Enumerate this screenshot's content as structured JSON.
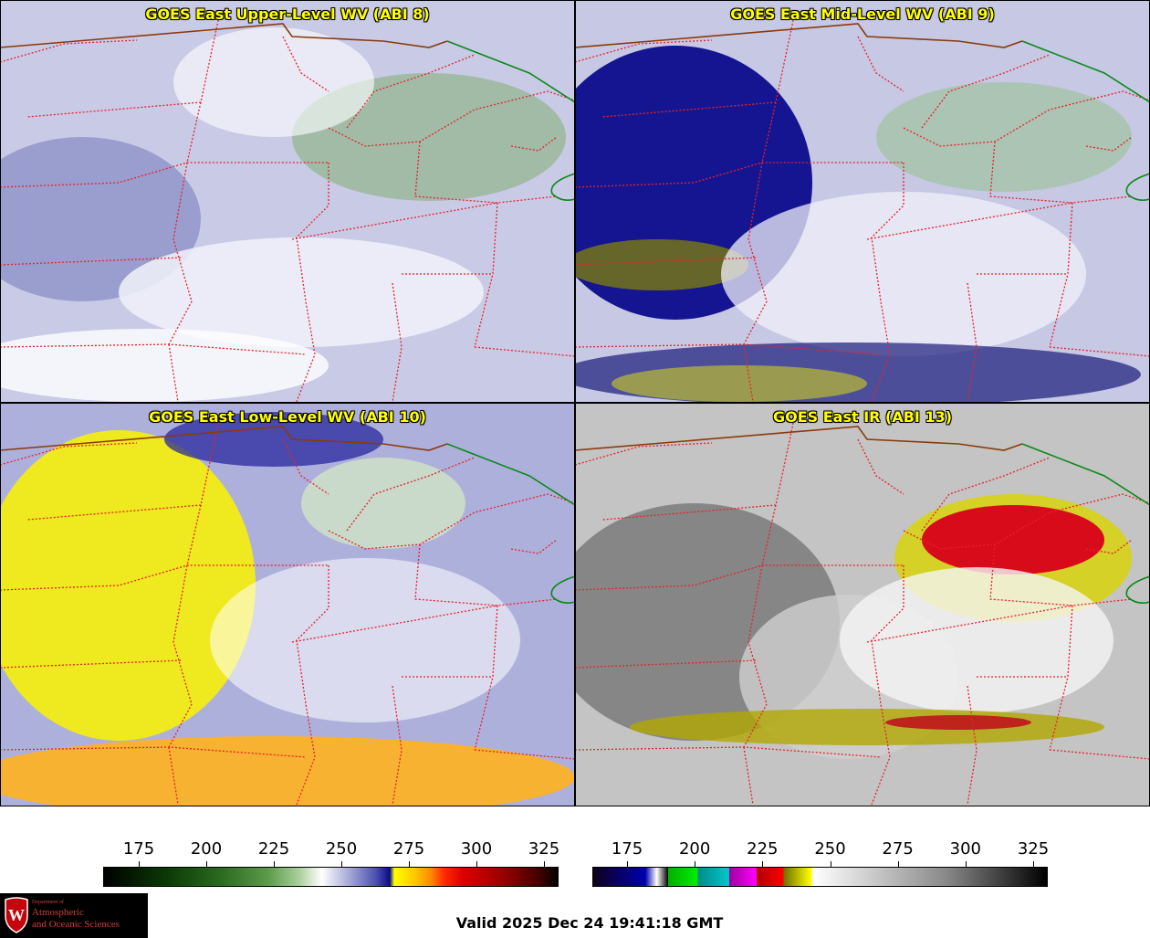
{
  "panels": [
    {
      "title": "GOES East Upper-Level WV (ABI 8)",
      "style": "wv_upper"
    },
    {
      "title": "GOES East Mid-Level WV (ABI 9)",
      "style": "wv_mid"
    },
    {
      "title": "GOES East Low-Level WV (ABI 10)",
      "style": "wv_low"
    },
    {
      "title": "GOES East IR (ABI 13)",
      "style": "ir"
    }
  ],
  "colorbars": {
    "left": {
      "ticks": [
        "175",
        "200",
        "225",
        "250",
        "275",
        "300",
        "325"
      ]
    },
    "right": {
      "ticks": [
        "175",
        "200",
        "225",
        "250",
        "275",
        "300",
        "325"
      ]
    }
  },
  "valid_time": "Valid 2025 Dec 24 19:41:18 GMT",
  "logo": {
    "department": "Department of",
    "line1": "Atmospheric",
    "line2": "and Oceanic Sciences",
    "shield_letter": "W"
  },
  "map_colors": {
    "state_lines": "#e8202a",
    "country_border": "#8b3a0a",
    "coast_line": "#0a8a1a"
  }
}
